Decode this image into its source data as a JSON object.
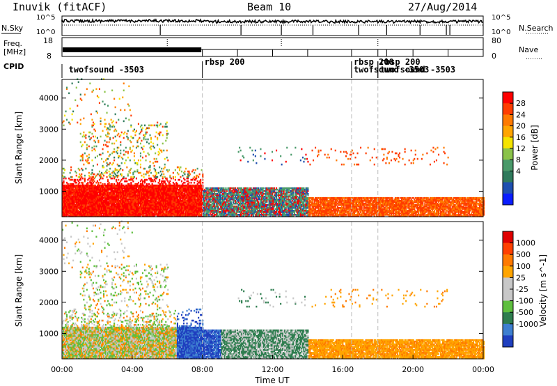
{
  "header": {
    "station": "Inuvik (fitACF)",
    "beam": "Beam 10",
    "date": "27/Aug/2014"
  },
  "strips": {
    "nsky_label": "N.Sky",
    "nsky_ticks": [
      "10^5",
      "10^0"
    ],
    "nsearch_label": "N.Search",
    "nsearch_ticks": [
      "10^5",
      "10^0"
    ],
    "freq_label": "Freq.",
    "freq_unit": "[MHz]",
    "freq_ticks": [
      "18",
      "8"
    ],
    "nave_label": "Nave",
    "nave_ticks": [
      "80",
      "0"
    ],
    "cpid_label": "CPID",
    "cpid_segments": [
      {
        "label": "twofsound -3503",
        "t": 0.3
      },
      {
        "label": "rbsp 200",
        "t": 8.0
      },
      {
        "label": "rbsp 200",
        "t": 16.5
      },
      {
        "label": "rbsp 200",
        "t": 18.0
      },
      {
        "label": "twofsound -3503",
        "t": 16.5
      },
      {
        "label": "twofsound -3503",
        "t": 18.0
      }
    ]
  },
  "chart_data": [
    {
      "type": "heatmap",
      "title": "",
      "xlabel": "",
      "ylabel": "Slant Range [km]",
      "xlim": [
        0,
        24
      ],
      "ylim": [
        180,
        4600
      ],
      "yticks": [
        "4000",
        "3000",
        "2000",
        "1000"
      ],
      "ytick_values": [
        4000,
        3000,
        2000,
        1000
      ],
      "colorbar_label": "Power [dB]",
      "colorbar_ticks": [
        "28",
        "24",
        "20",
        "16",
        "12",
        "8",
        "4"
      ],
      "colorbar_values": [
        28,
        24,
        20,
        16,
        12,
        8,
        4
      ],
      "colors": [
        "#0a1dff",
        "#1e4fb0",
        "#2f7a5c",
        "#4a9a6a",
        "#8bc34a",
        "#f5e400",
        "#ffa500",
        "#ff7a00",
        "#ff3d00",
        "#ff0000"
      ],
      "description_bands": [
        {
          "t_start": 0,
          "t_end": 8,
          "range_low": 200,
          "range_high": 1800,
          "power": 26
        },
        {
          "t_start": 8,
          "t_end": 14,
          "range_low": 300,
          "range_high": 1100,
          "power": 12
        },
        {
          "t_start": 14,
          "t_end": 24,
          "range_low": 250,
          "range_high": 800,
          "power": 22
        }
      ]
    },
    {
      "type": "heatmap",
      "title": "",
      "xlabel": "Time UT",
      "ylabel": "Slant Range [km]",
      "xlim": [
        0,
        24
      ],
      "ylim": [
        180,
        4600
      ],
      "yticks": [
        "4000",
        "3000",
        "2000",
        "1000"
      ],
      "ytick_values": [
        4000,
        3000,
        2000,
        1000
      ],
      "xticks": [
        "00:00",
        "04:00",
        "08:00",
        "12:00",
        "16:00",
        "20:00",
        "00:00"
      ],
      "xtick_values": [
        0,
        4,
        8,
        12,
        16,
        20,
        24
      ],
      "colorbar_label": "Velocity [m s^-1]",
      "colorbar_ticks": [
        "1000",
        "500",
        "100",
        "25",
        "-25",
        "-100",
        "-500",
        "-1000"
      ],
      "colorbar_values": [
        1000,
        500,
        100,
        25,
        -25,
        -100,
        -500,
        -1000
      ],
      "colors": [
        "#1f3fbf",
        "#3e7fd0",
        "#2e7d4f",
        "#5fbf3f",
        "#c8c8c8",
        "#c8c8c8",
        "#ffa500",
        "#ff7a00",
        "#ff4000",
        "#e00000"
      ]
    }
  ]
}
